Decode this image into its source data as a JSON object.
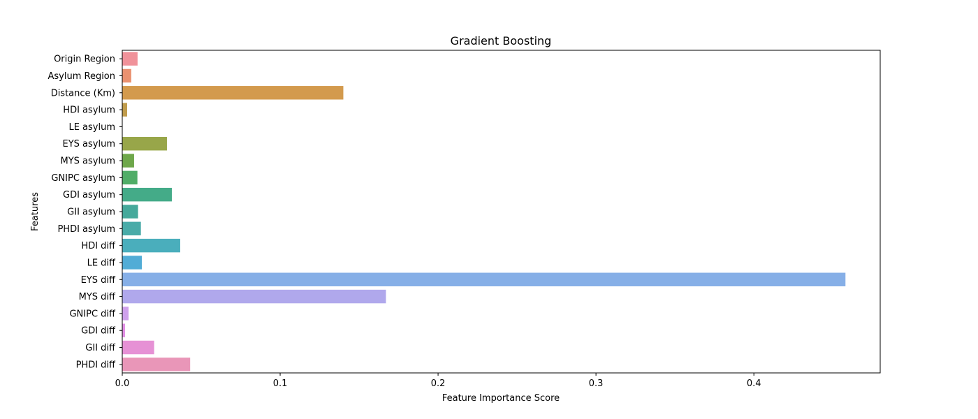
{
  "chart_data": {
    "type": "bar",
    "orientation": "horizontal",
    "title": "Gradient Boosting",
    "xlabel": "Feature Importance Score",
    "ylabel": "Features",
    "xlim": [
      0,
      0.48
    ],
    "xticks": [
      0.0,
      0.1,
      0.2,
      0.3,
      0.4
    ],
    "xtick_labels": [
      "0.0",
      "0.1",
      "0.2",
      "0.3",
      "0.4"
    ],
    "grid": false,
    "legend": "none",
    "categories": [
      "Origin Region",
      "Asylum Region",
      "Distance (Km)",
      "HDI asylum",
      "LE asylum",
      "EYS asylum",
      "MYS asylum",
      "GNIPC asylum",
      "GDI asylum",
      "GII asylum",
      "PHDI asylum",
      "HDI diff",
      "LE diff",
      "EYS diff",
      "MYS diff",
      "GNIPC diff",
      "GDI diff",
      "GII diff",
      "PHDI diff"
    ],
    "values": [
      0.0097,
      0.0057,
      0.14,
      0.0031,
      0.0,
      0.0283,
      0.0075,
      0.0096,
      0.0314,
      0.01,
      0.0118,
      0.0367,
      0.0124,
      0.458,
      0.167,
      0.004,
      0.0018,
      0.0202,
      0.043
    ],
    "colors": [
      "#f0929a",
      "#ea9170",
      "#d39a4d",
      "#c09c4c",
      "#b0a34a",
      "#98a649",
      "#6ea74a",
      "#50ad67",
      "#44ab88",
      "#45a99b",
      "#49aba8",
      "#4aaebc",
      "#51acd6",
      "#86afe7",
      "#b0a8ec",
      "#cfa0ec",
      "#e18fe5",
      "#e691d5",
      "#e996b8"
    ]
  }
}
